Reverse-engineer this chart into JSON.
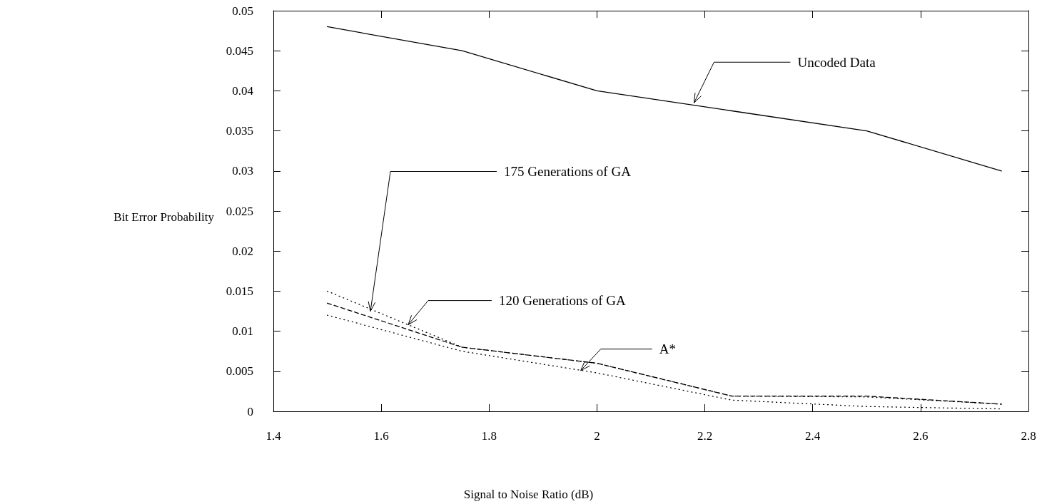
{
  "chart_data": {
    "type": "line",
    "xlabel": "Signal to Noise Ratio (dB)",
    "ylabel": "Bit Error Probability",
    "x": [
      1.5,
      1.75,
      2,
      2.25,
      2.5,
      2.75
    ],
    "series": [
      {
        "color": "#000000",
        "line_style": "solid",
        "values": [
          0.048,
          0.045,
          0.04,
          0.0375,
          0.035,
          0.03
        ]
      },
      {
        "color": "#000000",
        "line_style": "dotted",
        "values": [
          0.015,
          0.008,
          0.006,
          0.0019,
          0.0018,
          0.0009
        ]
      },
      {
        "color": "#000000",
        "line_style": "dashed",
        "values": [
          0.0135,
          0.008,
          0.006,
          0.0019,
          0.0019,
          0.0009
        ]
      },
      {
        "color": "#000000",
        "line_style": "dotted",
        "values": [
          0.012,
          0.0075,
          0.0048,
          0.0014,
          0.0006,
          0.0003
        ]
      }
    ],
    "xlim": [
      1.4,
      2.8
    ],
    "xticks": [
      1.4,
      1.6,
      1.8,
      2,
      2.2,
      2.4,
      2.6,
      2.8
    ],
    "ylim": [
      0,
      0.05
    ],
    "yticks": [
      0,
      0.005,
      0.01,
      0.015,
      0.02,
      0.025,
      0.03,
      0.035,
      0.04,
      0.045,
      0.05
    ],
    "grid": false,
    "marker": "none",
    "annotations": [
      {
        "text": "Uncoded Data",
        "x": 2.18,
        "y": 0.0385
      },
      {
        "text": "175 Generations of GA",
        "x": 1.58,
        "y": 0.0125
      },
      {
        "text": "120 Generations of GA",
        "x": 1.65,
        "y": 0.0108
      },
      {
        "text": "A*",
        "x": 1.97,
        "y": 0.0051
      }
    ]
  }
}
